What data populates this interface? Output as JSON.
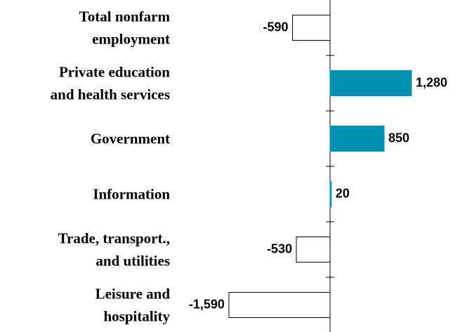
{
  "chart_data": {
    "type": "bar",
    "orientation": "horizontal",
    "categories": [
      "Total nonfarm\nemployment",
      "Private education\nand health services",
      "Government",
      "Information",
      "Trade, transport.,\nand utilities",
      "Leisure and\nhospitality"
    ],
    "values": [
      -590,
      1280,
      850,
      20,
      -530,
      -1590
    ],
    "value_labels": [
      "-590",
      "1,280",
      "850",
      "20",
      "-530",
      "-1,590"
    ],
    "color": "#0092b3",
    "negative_color": "#ffffff"
  }
}
